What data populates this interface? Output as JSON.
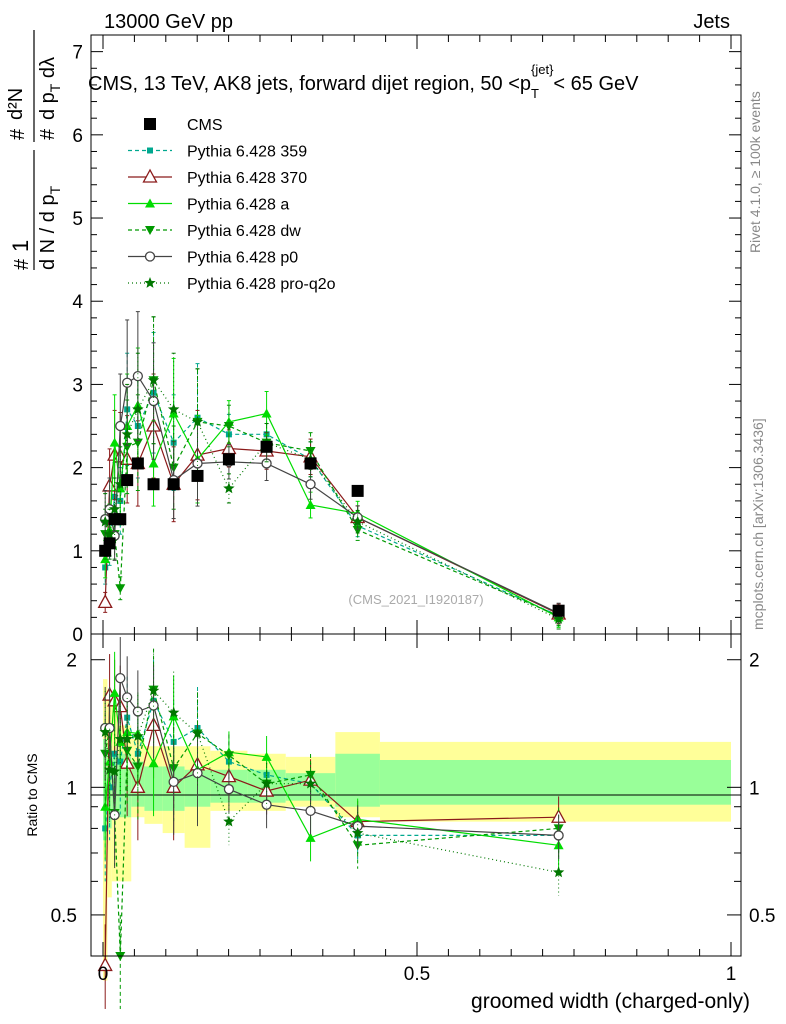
{
  "header": {
    "left": "13000 GeV pp",
    "right": "Jets"
  },
  "colors": {
    "cms": "#000000",
    "p359": "#00a88f",
    "p370": "#8b1a1a",
    "pa": "#00dd00",
    "pdw": "#009900",
    "pp0": "#444444",
    "pq2o": "#007700",
    "band_yellow": "#ffff99",
    "band_green": "#99ff99"
  },
  "chart_data": [
    {
      "type": "line",
      "title": "CMS, 13 TeV, AK8 jets, forward dijet region, 50 <p_T^{jet}< 65 GeV",
      "ylabel": "1/(dN/dpT) d²N/(dpT dλ)",
      "xlim": [
        0,
        1
      ],
      "ylim": [
        0,
        7.2
      ],
      "yticks": [
        0,
        1,
        2,
        3,
        4,
        5,
        6,
        7
      ],
      "x_centers": [
        0.0035,
        0.0105,
        0.0185,
        0.0275,
        0.0385,
        0.0555,
        0.0805,
        0.1125,
        0.1505,
        0.2005,
        0.2605,
        0.3305,
        0.4055,
        0.7255
      ],
      "series": [
        {
          "name": "CMS",
          "values": [
            1.0,
            1.09,
            1.38,
            1.38,
            1.85,
            2.05,
            1.8,
            1.8,
            1.9,
            2.1,
            2.25,
            2.05,
            1.72,
            0.28
          ],
          "errors": [
            0.02,
            0.02,
            0.02,
            0.02,
            0.02,
            0.02,
            0.02,
            0.02,
            0.02,
            0.02,
            0.02,
            0.02,
            0.02,
            0.01
          ]
        },
        {
          "name": "Pythia 6.428 359",
          "values": [
            0.8,
            1.1,
            1.65,
            1.6,
            2.7,
            2.5,
            2.9,
            2.3,
            2.6,
            2.4,
            2.4,
            2.1,
            1.3,
            0.22
          ],
          "errors": [
            0.4,
            0.4,
            0.4,
            0.5,
            0.7,
            0.5,
            0.5,
            0.35,
            0.3,
            0.2,
            0.2,
            0.15,
            0.1,
            0.03
          ]
        },
        {
          "name": "Pythia 6.428 370",
          "values": [
            0.38,
            1.78,
            2.15,
            2.13,
            2.1,
            2.05,
            2.5,
            1.8,
            2.15,
            2.23,
            2.2,
            2.13,
            1.4,
            0.24
          ]
        },
        {
          "name": "Pythia 6.428 a",
          "values": [
            0.9,
            1.25,
            2.3,
            1.75,
            2.5,
            2.75,
            2.05,
            2.65,
            2.1,
            2.55,
            2.65,
            1.55,
            1.45,
            0.2
          ]
        },
        {
          "name": "Pythia 6.428 dw",
          "values": [
            1.2,
            1.5,
            1.2,
            0.55,
            2.25,
            2.3,
            3.05,
            2.0,
            2.55,
            2.5,
            2.3,
            2.2,
            1.25,
            0.22
          ]
        },
        {
          "name": "Pythia 6.428 p0",
          "values": [
            1.38,
            1.5,
            1.18,
            2.5,
            3.02,
            3.1,
            2.8,
            1.85,
            2.05,
            2.07,
            2.05,
            1.8,
            1.4,
            0.25
          ]
        },
        {
          "name": "Pythia 6.428 pro-q2o",
          "values": [
            1.35,
            1.2,
            1.5,
            1.8,
            2.4,
            2.7,
            3.05,
            2.7,
            2.55,
            1.75,
            2.3,
            2.1,
            1.35,
            0.18
          ]
        }
      ],
      "legend": [
        "CMS",
        "Pythia 6.428 359",
        "Pythia 6.428 370",
        "Pythia 6.428 a",
        "Pythia 6.428 dw",
        "Pythia 6.428 p0",
        "Pythia 6.428 pro-q2o"
      ],
      "watermark": "(CMS_2021_I1920187)"
    },
    {
      "type": "line",
      "ylabel": "Ratio to CMS",
      "xlabel": "groomed width (charged-only)",
      "xlim": [
        0,
        1
      ],
      "ylim": [
        0.4,
        2.3
      ],
      "yticks": [
        0.5,
        1,
        2
      ],
      "xticks": [
        0,
        0.5,
        1
      ],
      "bins": [
        0,
        0.007,
        0.014,
        0.023,
        0.032,
        0.045,
        0.066,
        0.095,
        0.13,
        0.171,
        0.23,
        0.291,
        0.37,
        0.441,
        1.0
      ],
      "band_yellow": [
        [
          0.35,
          1.8
        ],
        [
          0.55,
          1.65
        ],
        [
          0.6,
          1.65
        ],
        [
          0.6,
          1.4
        ],
        [
          0.6,
          1.4
        ],
        [
          0.85,
          1.3
        ],
        [
          0.82,
          1.25
        ],
        [
          0.78,
          1.25
        ],
        [
          0.72,
          1.25
        ],
        [
          0.88,
          1.22
        ],
        [
          0.88,
          1.2
        ],
        [
          0.9,
          1.18
        ],
        [
          0.85,
          1.35
        ],
        [
          0.83,
          1.28
        ]
      ],
      "band_green": [
        [
          0.75,
          1.3
        ],
        [
          0.8,
          1.25
        ],
        [
          0.85,
          1.2
        ],
        [
          0.85,
          1.2
        ],
        [
          0.85,
          1.2
        ],
        [
          0.9,
          1.15
        ],
        [
          0.88,
          1.12
        ],
        [
          0.88,
          1.12
        ],
        [
          0.9,
          1.1
        ],
        [
          0.92,
          1.1
        ],
        [
          0.92,
          1.1
        ],
        [
          0.93,
          1.08
        ],
        [
          0.9,
          1.2
        ],
        [
          0.91,
          1.16
        ]
      ],
      "ratio_series": [
        {
          "name": "Pythia 6.428 359",
          "values": [
            0.8,
            1.0,
            1.2,
            1.15,
            1.46,
            1.2,
            1.6,
            1.28,
            1.38,
            1.15,
            1.07,
            1.02,
            0.77,
            0.77
          ]
        },
        {
          "name": "Pythia 6.428 370",
          "values": [
            0.38,
            1.65,
            1.6,
            1.55,
            1.14,
            1.0,
            1.4,
            1.0,
            1.13,
            1.06,
            0.98,
            1.04,
            0.83,
            0.85
          ]
        },
        {
          "name": "Pythia 6.428 a",
          "values": [
            0.9,
            1.15,
            1.67,
            1.28,
            1.35,
            1.34,
            1.14,
            1.47,
            1.1,
            1.21,
            1.18,
            0.76,
            0.84,
            0.73
          ]
        },
        {
          "name": "Pythia 6.428 dw",
          "values": [
            1.2,
            1.38,
            0.87,
            0.4,
            1.22,
            1.12,
            1.7,
            1.11,
            1.34,
            1.19,
            1.02,
            1.07,
            0.73,
            0.8
          ]
        },
        {
          "name": "Pythia 6.428 p0",
          "values": [
            1.38,
            1.38,
            0.86,
            1.81,
            1.63,
            1.51,
            1.56,
            1.03,
            1.08,
            0.99,
            0.91,
            0.88,
            0.81,
            0.77
          ]
        },
        {
          "name": "Pythia 6.428 pro-q2o",
          "values": [
            1.35,
            1.1,
            1.09,
            1.3,
            1.3,
            1.32,
            1.69,
            1.5,
            1.34,
            0.83,
            1.02,
            1.02,
            0.78,
            0.63
          ]
        }
      ]
    }
  ],
  "side_labels": {
    "rivet": "Rivet 4.1.0, ≥ 100k events",
    "mcplots": "mcplots.cern.ch [arXiv:1306.3436]"
  }
}
